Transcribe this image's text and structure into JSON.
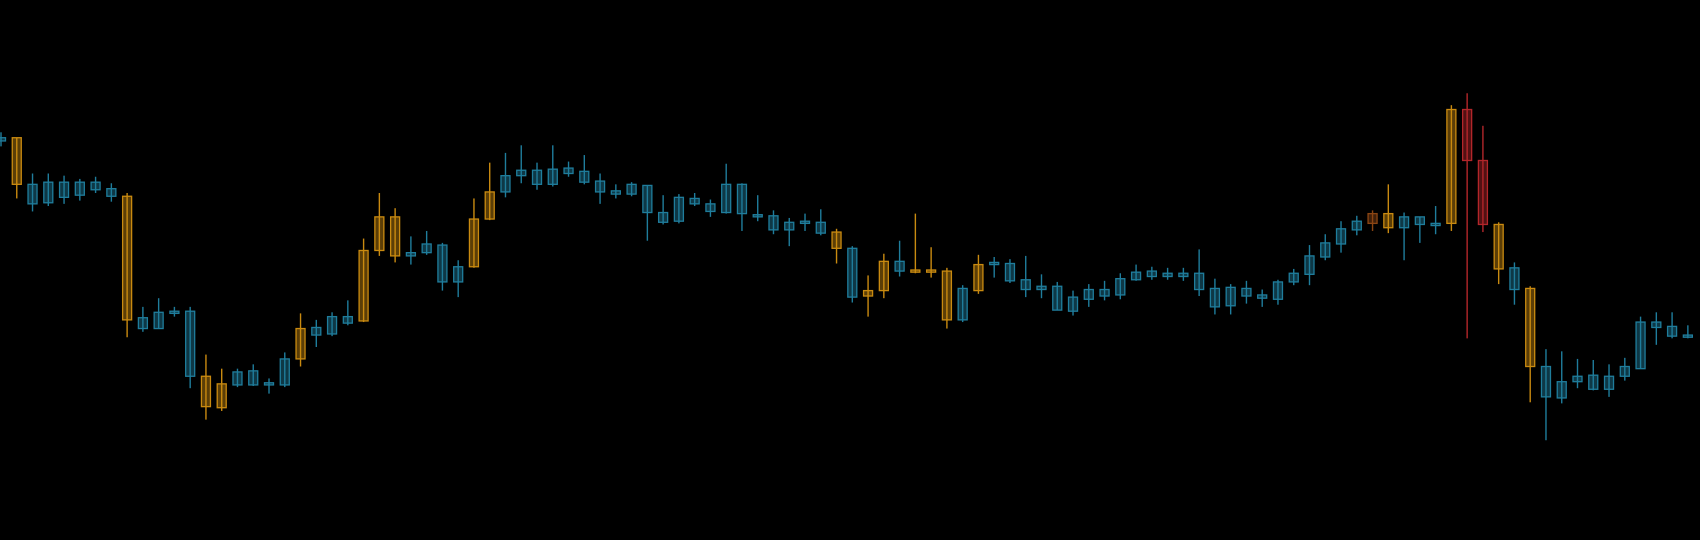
{
  "chart_data": {
    "type": "candlestick",
    "ylim": [
      0,
      498
    ],
    "open": [
      368,
      371,
      310,
      311,
      316,
      318,
      323,
      317,
      317,
      195,
      195,
      209,
      151,
      151,
      144,
      143,
      143,
      143,
      143,
      195,
      189,
      190,
      200,
      267,
      298,
      298,
      262,
      265,
      238,
      238,
      296,
      321,
      321,
      336,
      328,
      328,
      338,
      330,
      321,
      319,
      319,
      302,
      293,
      294,
      310,
      303,
      302,
      301,
      298,
      286,
      286,
      292,
      283,
      284,
      224,
      230,
      257,
      248,
      249,
      249,
      248,
      203,
      254,
      254,
      239,
      231,
      231,
      212,
      211,
      222,
      225,
      226,
      240,
      243,
      243,
      243,
      231,
      215,
      216,
      225,
      223,
      222,
      238,
      245,
      261,
      273,
      286,
      301,
      301,
      288,
      291,
      290,
      397,
      397,
      350,
      291,
      231,
      232,
      132,
      131,
      146,
      139,
      139,
      151,
      158,
      196,
      188,
      187
    ],
    "high": [
      376,
      371,
      338,
      338,
      336,
      333,
      335,
      329,
      320,
      215,
      223,
      215,
      215,
      171,
      158,
      158,
      162,
      149,
      173,
      209,
      203,
      210,
      221,
      278,
      320,
      306,
      280,
      285,
      274,
      258,
      315,
      348,
      357,
      364,
      348,
      364,
      349,
      355,
      338,
      328,
      330,
      327,
      318,
      319,
      320,
      314,
      347,
      329,
      318,
      304,
      297,
      301,
      305,
      287,
      271,
      244,
      264,
      276,
      301,
      270,
      251,
      235,
      263,
      261,
      259,
      262,
      245,
      238,
      230,
      236,
      239,
      246,
      254,
      252,
      251,
      251,
      268,
      241,
      236,
      239,
      231,
      240,
      250,
      272,
      282,
      294,
      299,
      304,
      328,
      302,
      298,
      308,
      401,
      412,
      382,
      293,
      256,
      234,
      176,
      174,
      167,
      166,
      162,
      168,
      206,
      210,
      210,
      198
    ],
    "low": [
      363,
      315,
      303,
      308,
      310,
      313,
      320,
      312,
      187,
      192,
      195,
      206,
      140,
      111,
      119,
      141,
      142,
      135,
      141,
      160,
      178,
      188,
      198,
      201,
      262,
      256,
      254,
      263,
      230,
      224,
      251,
      295,
      316,
      329,
      323,
      326,
      335,
      328,
      310,
      315,
      317,
      276,
      291,
      292,
      308,
      298,
      301,
      285,
      294,
      282,
      271,
      285,
      281,
      255,
      219,
      206,
      223,
      243,
      246,
      242,
      195,
      201,
      227,
      242,
      237,
      224,
      223,
      212,
      207,
      215,
      221,
      222,
      239,
      240,
      240,
      239,
      225,
      208,
      208,
      218,
      215,
      217,
      235,
      235,
      258,
      265,
      281,
      285,
      283,
      258,
      274,
      282,
      285,
      186,
      284,
      236,
      217,
      127,
      92,
      126,
      140,
      138,
      132,
      147,
      158,
      180,
      186,
      186
    ],
    "close": [
      371,
      328,
      328,
      330,
      330,
      330,
      330,
      324,
      203,
      205,
      210,
      211,
      211,
      123,
      122,
      155,
      156,
      145,
      167,
      167,
      196,
      206,
      206,
      202,
      267,
      262,
      265,
      273,
      272,
      252,
      252,
      296,
      336,
      341,
      341,
      342,
      343,
      340,
      331,
      322,
      328,
      327,
      302,
      316,
      315,
      310,
      328,
      328,
      300,
      299,
      293,
      294,
      293,
      269,
      269,
      225,
      230,
      257,
      247,
      247,
      203,
      232,
      230,
      256,
      255,
      240,
      234,
      234,
      224,
      231,
      231,
      241,
      247,
      248,
      246,
      246,
      246,
      232,
      233,
      232,
      226,
      238,
      246,
      262,
      274,
      287,
      294,
      292,
      288,
      298,
      298,
      292,
      292,
      350,
      291,
      250,
      251,
      160,
      160,
      146,
      151,
      152,
      151,
      160,
      201,
      201,
      197,
      189
    ],
    "colors": [
      "#1f7d9c",
      "#c98a10",
      "#1f7d9c",
      "#1f7d9c",
      "#1f7d9c",
      "#1f7d9c",
      "#1f7d9c",
      "#1f7d9c",
      "#c98a10",
      "#1f7d9c",
      "#1f7d9c",
      "#1f7d9c",
      "#1f7d9c",
      "#c98a10",
      "#c98a10",
      "#1f7d9c",
      "#1f7d9c",
      "#1f7d9c",
      "#1f7d9c",
      "#c98a10",
      "#1f7d9c",
      "#1f7d9c",
      "#1f7d9c",
      "#c98a10",
      "#c98a10",
      "#c98a10",
      "#1f7d9c",
      "#1f7d9c",
      "#1f7d9c",
      "#1f7d9c",
      "#c98a10",
      "#c98a10",
      "#1f7d9c",
      "#1f7d9c",
      "#1f7d9c",
      "#1f7d9c",
      "#1f7d9c",
      "#1f7d9c",
      "#1f7d9c",
      "#1f7d9c",
      "#1f7d9c",
      "#1f7d9c",
      "#1f7d9c",
      "#1f7d9c",
      "#1f7d9c",
      "#1f7d9c",
      "#1f7d9c",
      "#1f7d9c",
      "#1f7d9c",
      "#1f7d9c",
      "#1f7d9c",
      "#1f7d9c",
      "#1f7d9c",
      "#c98a10",
      "#1f7d9c",
      "#c98a10",
      "#c98a10",
      "#1f7d9c",
      "#c98a10",
      "#c98a10",
      "#c98a10",
      "#1f7d9c",
      "#c98a10",
      "#1f7d9c",
      "#1f7d9c",
      "#1f7d9c",
      "#1f7d9c",
      "#1f7d9c",
      "#1f7d9c",
      "#1f7d9c",
      "#1f7d9c",
      "#1f7d9c",
      "#1f7d9c",
      "#1f7d9c",
      "#1f7d9c",
      "#1f7d9c",
      "#1f7d9c",
      "#1f7d9c",
      "#1f7d9c",
      "#1f7d9c",
      "#1f7d9c",
      "#1f7d9c",
      "#1f7d9c",
      "#1f7d9c",
      "#1f7d9c",
      "#1f7d9c",
      "#1f7d9c",
      "#8b4513",
      "#c98a10",
      "#1f7d9c",
      "#1f7d9c",
      "#1f7d9c",
      "#c98a10",
      "#b3262a",
      "#b3262a",
      "#c98a10",
      "#1f7d9c",
      "#c98a10",
      "#1f7d9c",
      "#1f7d9c",
      "#1f7d9c",
      "#1f7d9c",
      "#1f7d9c",
      "#1f7d9c",
      "#1f7d9c",
      "#1f7d9c",
      "#1f7d9c",
      "#1f7d9c"
    ]
  }
}
